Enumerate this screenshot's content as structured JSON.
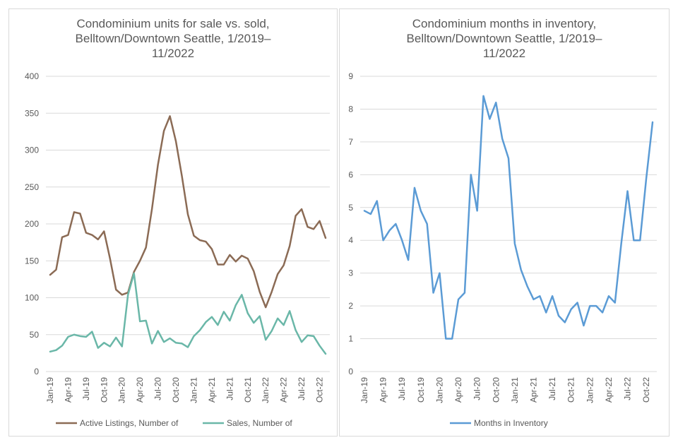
{
  "chart_data": [
    {
      "type": "line",
      "title": "Condominium units for sale vs. sold, Belltown/Downtown Seattle, 1/2019–11/2022",
      "xlabel": "",
      "ylabel": "",
      "ylim": [
        0,
        400
      ],
      "yticks": [
        0,
        50,
        100,
        150,
        200,
        250,
        300,
        350,
        400
      ],
      "x_tick_labels": [
        "Jan-19",
        "Apr-19",
        "Jul-19",
        "Oct-19",
        "Jan-20",
        "Apr-20",
        "Jul-20",
        "Oct-20",
        "Jan-21",
        "Apr-21",
        "Jul-21",
        "Oct-21",
        "Jan-22",
        "Apr-22",
        "Jul-22",
        "Oct-22"
      ],
      "categories": [
        "Jan-19",
        "Feb-19",
        "Mar-19",
        "Apr-19",
        "May-19",
        "Jun-19",
        "Jul-19",
        "Aug-19",
        "Sep-19",
        "Oct-19",
        "Nov-19",
        "Dec-19",
        "Jan-20",
        "Feb-20",
        "Mar-20",
        "Apr-20",
        "May-20",
        "Jun-20",
        "Jul-20",
        "Aug-20",
        "Sep-20",
        "Oct-20",
        "Nov-20",
        "Dec-20",
        "Jan-21",
        "Feb-21",
        "Mar-21",
        "Apr-21",
        "May-21",
        "Jun-21",
        "Jul-21",
        "Aug-21",
        "Sep-21",
        "Oct-21",
        "Nov-21",
        "Dec-21",
        "Jan-22",
        "Feb-22",
        "Mar-22",
        "Apr-22",
        "May-22",
        "Jun-22",
        "Jul-22",
        "Aug-22",
        "Sep-22",
        "Oct-22",
        "Nov-22"
      ],
      "legend_position": "bottom",
      "series": [
        {
          "name": "Active Listings, Number of",
          "color": "#8b6b55",
          "values": [
            131,
            138,
            182,
            185,
            216,
            214,
            188,
            185,
            179,
            190,
            153,
            111,
            104,
            107,
            135,
            150,
            168,
            220,
            280,
            326,
            346,
            312,
            265,
            213,
            184,
            178,
            176,
            166,
            145,
            145,
            158,
            149,
            157,
            153,
            136,
            108,
            87,
            108,
            132,
            144,
            170,
            211,
            220,
            196,
            193,
            204,
            181
          ]
        },
        {
          "name": "Sales, Number of",
          "color": "#6ab7a8",
          "values": [
            27,
            29,
            35,
            47,
            50,
            48,
            47,
            54,
            32,
            39,
            34,
            46,
            34,
            104,
            133,
            68,
            69,
            38,
            55,
            40,
            45,
            39,
            38,
            33,
            48,
            56,
            67,
            74,
            63,
            81,
            69,
            90,
            104,
            79,
            66,
            75,
            43,
            55,
            72,
            63,
            82,
            56,
            40,
            49,
            48,
            35,
            24
          ]
        }
      ]
    },
    {
      "type": "line",
      "title": "Condominium months in inventory, Belltown/Downtown Seattle, 1/2019–11/2022",
      "xlabel": "",
      "ylabel": "",
      "ylim": [
        0,
        9
      ],
      "yticks": [
        0,
        1,
        2,
        3,
        4,
        5,
        6,
        7,
        8,
        9
      ],
      "x_tick_labels": [
        "Jan-19",
        "Apr-19",
        "Jul-19",
        "Oct-19",
        "Jan-20",
        "Apr-20",
        "Jul-20",
        "Oct-20",
        "Jan-21",
        "Apr-21",
        "Jul-21",
        "Oct-21",
        "Jan-22",
        "Apr-22",
        "Jul-22",
        "Oct-22"
      ],
      "categories": [
        "Jan-19",
        "Feb-19",
        "Mar-19",
        "Apr-19",
        "May-19",
        "Jun-19",
        "Jul-19",
        "Aug-19",
        "Sep-19",
        "Oct-19",
        "Nov-19",
        "Dec-19",
        "Jan-20",
        "Feb-20",
        "Mar-20",
        "Apr-20",
        "May-20",
        "Jun-20",
        "Jul-20",
        "Aug-20",
        "Sep-20",
        "Oct-20",
        "Nov-20",
        "Dec-20",
        "Jan-21",
        "Feb-21",
        "Mar-21",
        "Apr-21",
        "May-21",
        "Jun-21",
        "Jul-21",
        "Aug-21",
        "Sep-21",
        "Oct-21",
        "Nov-21",
        "Dec-21",
        "Jan-22",
        "Feb-22",
        "Mar-22",
        "Apr-22",
        "May-22",
        "Jun-22",
        "Jul-22",
        "Aug-22",
        "Sep-22",
        "Oct-22",
        "Nov-22"
      ],
      "legend_position": "bottom",
      "series": [
        {
          "name": "Months in Inventory",
          "color": "#5b9bd5",
          "values": [
            4.9,
            4.8,
            5.2,
            4.0,
            4.3,
            4.5,
            4.0,
            3.4,
            5.6,
            4.9,
            4.5,
            2.4,
            3.0,
            1.0,
            1.0,
            2.2,
            2.4,
            6.0,
            4.9,
            8.4,
            7.7,
            8.2,
            7.1,
            6.5,
            3.9,
            3.1,
            2.6,
            2.2,
            2.3,
            1.8,
            2.3,
            1.7,
            1.5,
            1.9,
            2.1,
            1.4,
            2.0,
            2.0,
            1.8,
            2.3,
            2.1,
            3.9,
            5.5,
            4.0,
            4.0,
            5.9,
            7.6
          ]
        }
      ]
    }
  ]
}
